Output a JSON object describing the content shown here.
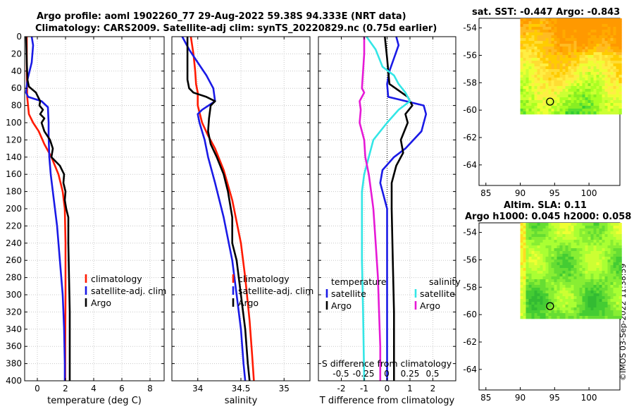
{
  "titles": {
    "line1": "Argo profile: aoml 1902260_77 29-Aug-2022 59.38S 94.333E (NRT data)",
    "line2": "Climatology: CARS2009. Satellite-adj clim: synTS_20220829.nc (0.75d earlier)",
    "sst": "sat. SST: -0.447 Argo: -0.843",
    "sla1": "Altim. SLA: 0.11",
    "sla2": "Argo h1000: 0.045 h2000: 0.058"
  },
  "stamp": "©IMOS 03-Sep-2022 11:38:59",
  "colors": {
    "climatology": "#ff1a00",
    "satellite": "#1a1ae6",
    "argo": "#000000",
    "salinity": "#33e6e6",
    "argo_sal": "#e619d6"
  },
  "chart_data": [
    {
      "id": "temperature",
      "type": "line",
      "xlabel": "temperature (deg C)",
      "xlim": [
        -0.9,
        9.0
      ],
      "ylim": [
        0,
        400
      ],
      "xticks": [
        0,
        2,
        4,
        6,
        8
      ],
      "xtick_labels": [
        "0",
        "2",
        "4",
        "6",
        "8"
      ],
      "yticks": [
        0,
        20,
        40,
        60,
        80,
        100,
        120,
        140,
        160,
        180,
        200,
        220,
        240,
        260,
        280,
        300,
        320,
        340,
        360,
        380,
        400
      ],
      "ytick_labels": [
        "0",
        "20",
        "40",
        "60",
        "80",
        "100",
        "120",
        "140",
        "160",
        "180",
        "200",
        "220",
        "240",
        "260",
        "280",
        "300",
        "320",
        "340",
        "360",
        "380",
        "400"
      ],
      "legend": [
        "climatology",
        "satellite-adj. clim",
        "Argo"
      ],
      "series": [
        {
          "name": "climatology",
          "color": "#ff1a00",
          "points": [
            [
              -0.75,
              0
            ],
            [
              -0.75,
              40
            ],
            [
              -0.72,
              70
            ],
            [
              -0.6,
              90
            ],
            [
              -0.3,
              100
            ],
            [
              0.1,
              110
            ],
            [
              0.5,
              125
            ],
            [
              1.0,
              140
            ],
            [
              1.5,
              160
            ],
            [
              1.8,
              180
            ],
            [
              1.95,
              200
            ],
            [
              2.0,
              240
            ],
            [
              2.0,
              300
            ],
            [
              1.98,
              360
            ],
            [
              1.98,
              400
            ]
          ]
        },
        {
          "name": "satellite-adj. clim",
          "color": "#1a1ae6",
          "points": [
            [
              -0.4,
              0
            ],
            [
              -0.3,
              10
            ],
            [
              -0.4,
              30
            ],
            [
              -0.7,
              50
            ],
            [
              -0.8,
              65
            ],
            [
              -0.65,
              70
            ],
            [
              0.3,
              75
            ],
            [
              0.75,
              82
            ],
            [
              0.8,
              100
            ],
            [
              0.8,
              115
            ],
            [
              0.85,
              140
            ],
            [
              0.95,
              160
            ],
            [
              1.1,
              180
            ],
            [
              1.4,
              220
            ],
            [
              1.6,
              260
            ],
            [
              1.8,
              300
            ],
            [
              1.9,
              340
            ],
            [
              1.95,
              380
            ],
            [
              1.95,
              400
            ]
          ]
        },
        {
          "name": "Argo",
          "color": "#000000",
          "points": [
            [
              -0.8,
              0
            ],
            [
              -0.75,
              30
            ],
            [
              -0.7,
              50
            ],
            [
              -0.6,
              58
            ],
            [
              -0.1,
              65
            ],
            [
              0.2,
              75
            ],
            [
              0.15,
              80
            ],
            [
              0.4,
              85
            ],
            [
              0.2,
              90
            ],
            [
              0.5,
              95
            ],
            [
              0.3,
              100
            ],
            [
              0.5,
              110
            ],
            [
              0.9,
              120
            ],
            [
              1.1,
              130
            ],
            [
              1.0,
              140
            ],
            [
              1.6,
              150
            ],
            [
              1.9,
              160
            ],
            [
              1.85,
              170
            ],
            [
              2.0,
              180
            ],
            [
              1.95,
              190
            ],
            [
              2.05,
              200
            ],
            [
              2.2,
              210
            ],
            [
              2.2,
              240
            ],
            [
              2.25,
              280
            ],
            [
              2.3,
              320
            ],
            [
              2.3,
              360
            ],
            [
              2.3,
              400
            ]
          ]
        }
      ]
    },
    {
      "id": "salinity",
      "type": "line",
      "xlabel": "salinity",
      "xlim": [
        33.7,
        35.3
      ],
      "ylim": [
        0,
        400
      ],
      "xticks": [
        34,
        34.5,
        35
      ],
      "xtick_labels": [
        "34",
        "34.5",
        "35"
      ],
      "legend": [
        "climatology",
        "satellite-adj. clim",
        "Argo"
      ],
      "series": [
        {
          "name": "climatology",
          "color": "#ff1a00",
          "points": [
            [
              33.92,
              0
            ],
            [
              33.95,
              20
            ],
            [
              33.97,
              40
            ],
            [
              33.98,
              55
            ],
            [
              34.0,
              65
            ],
            [
              34.0,
              80
            ],
            [
              34.05,
              100
            ],
            [
              34.12,
              115
            ],
            [
              34.2,
              130
            ],
            [
              34.3,
              155
            ],
            [
              34.4,
              190
            ],
            [
              34.5,
              240
            ],
            [
              34.55,
              280
            ],
            [
              34.6,
              330
            ],
            [
              34.63,
              370
            ],
            [
              34.65,
              400
            ]
          ]
        },
        {
          "name": "satellite-adj. clim",
          "color": "#1a1ae6",
          "points": [
            [
              33.82,
              0
            ],
            [
              33.9,
              15
            ],
            [
              34.0,
              30
            ],
            [
              34.1,
              45
            ],
            [
              34.18,
              60
            ],
            [
              34.2,
              75
            ],
            [
              34.05,
              85
            ],
            [
              34.0,
              90
            ],
            [
              34.02,
              100
            ],
            [
              34.08,
              120
            ],
            [
              34.12,
              140
            ],
            [
              34.2,
              170
            ],
            [
              34.3,
              210
            ],
            [
              34.4,
              260
            ],
            [
              34.45,
              300
            ],
            [
              34.5,
              340
            ],
            [
              34.53,
              380
            ],
            [
              34.55,
              400
            ]
          ]
        },
        {
          "name": "Argo",
          "color": "#000000",
          "points": [
            [
              33.88,
              0
            ],
            [
              33.88,
              50
            ],
            [
              33.9,
              60
            ],
            [
              33.95,
              65
            ],
            [
              34.1,
              70
            ],
            [
              34.2,
              75
            ],
            [
              34.15,
              80
            ],
            [
              34.13,
              95
            ],
            [
              34.12,
              110
            ],
            [
              34.15,
              125
            ],
            [
              34.22,
              140
            ],
            [
              34.3,
              160
            ],
            [
              34.35,
              180
            ],
            [
              34.4,
              210
            ],
            [
              34.4,
              240
            ],
            [
              34.45,
              260
            ],
            [
              34.5,
              300
            ],
            [
              34.55,
              340
            ],
            [
              34.58,
              380
            ],
            [
              34.6,
              400
            ]
          ]
        }
      ]
    },
    {
      "id": "difference",
      "type": "line",
      "xlabel": "T difference from climatology",
      "top_axis_title": "S difference from climatology",
      "xlim": [
        -3.0,
        3.0
      ],
      "ylim": [
        0,
        400
      ],
      "xticks": [
        -2,
        -1,
        0,
        1,
        2
      ],
      "xtick_labels": [
        "-2",
        "-1",
        "0",
        "1",
        "2"
      ],
      "top_ticks": [
        -0.5,
        -0.25,
        0,
        0.25,
        0.5
      ],
      "top_tick_labels": [
        "-0.5",
        "-0.25",
        "0",
        "0.25",
        "0.5"
      ],
      "legend_temperature": {
        "heading": "temperature",
        "items": [
          "satellite",
          "Argo"
        ]
      },
      "legend_salinity": {
        "heading": "salinity",
        "items": [
          "satellite",
          "Argo"
        ]
      },
      "series": [
        {
          "name": "temperature satellite",
          "color": "#1a1ae6",
          "points": [
            [
              0.4,
              0
            ],
            [
              0.5,
              10
            ],
            [
              0.3,
              25
            ],
            [
              0.1,
              40
            ],
            [
              0.0,
              55
            ],
            [
              0.05,
              70
            ],
            [
              1.6,
              80
            ],
            [
              1.7,
              90
            ],
            [
              1.5,
              110
            ],
            [
              0.8,
              130
            ],
            [
              0.3,
              140
            ],
            [
              -0.2,
              155
            ],
            [
              -0.3,
              170
            ],
            [
              0.0,
              200
            ],
            [
              0.0,
              260
            ],
            [
              0.0,
              400
            ]
          ]
        },
        {
          "name": "temperature Argo",
          "color": "#000000",
          "points": [
            [
              -0.1,
              0
            ],
            [
              0.0,
              25
            ],
            [
              0.1,
              55
            ],
            [
              0.9,
              70
            ],
            [
              1.1,
              80
            ],
            [
              0.8,
              90
            ],
            [
              0.9,
              100
            ],
            [
              0.6,
              120
            ],
            [
              0.7,
              135
            ],
            [
              0.4,
              150
            ],
            [
              0.2,
              170
            ],
            [
              0.2,
              200
            ],
            [
              0.25,
              260
            ],
            [
              0.3,
              320
            ],
            [
              0.3,
              400
            ]
          ]
        },
        {
          "name": "salinity satellite",
          "color": "#33e6e6",
          "points": [
            [
              -0.9,
              0
            ],
            [
              -0.5,
              15
            ],
            [
              -0.2,
              35
            ],
            [
              0.3,
              45
            ],
            [
              0.5,
              55
            ],
            [
              0.8,
              65
            ],
            [
              1.0,
              75
            ],
            [
              0.5,
              85
            ],
            [
              0.0,
              100
            ],
            [
              -0.6,
              120
            ],
            [
              -0.8,
              140
            ],
            [
              -1.0,
              160
            ],
            [
              -1.1,
              180
            ],
            [
              -1.1,
              260
            ],
            [
              -1.05,
              320
            ],
            [
              -1.0,
              400
            ]
          ]
        },
        {
          "name": "salinity Argo",
          "color": "#e619d6",
          "points": [
            [
              -1.0,
              0
            ],
            [
              -1.0,
              20
            ],
            [
              -1.05,
              40
            ],
            [
              -1.1,
              60
            ],
            [
              -1.0,
              65
            ],
            [
              -1.2,
              75
            ],
            [
              -1.15,
              85
            ],
            [
              -1.2,
              100
            ],
            [
              -1.0,
              120
            ],
            [
              -0.95,
              140
            ],
            [
              -0.8,
              160
            ],
            [
              -0.7,
              180
            ],
            [
              -0.6,
              200
            ],
            [
              -0.5,
              240
            ],
            [
              -0.4,
              280
            ],
            [
              -0.35,
              320
            ],
            [
              -0.3,
              360
            ],
            [
              -0.3,
              400
            ]
          ]
        }
      ]
    },
    {
      "id": "sst-map",
      "type": "heatmap",
      "xlim": [
        84,
        104.5
      ],
      "ylim": [
        -65.5,
        -53.3
      ],
      "xticks": [
        85,
        90,
        95,
        100
      ],
      "xtick_labels": [
        "85",
        "90",
        "95",
        "100"
      ],
      "yticks": [
        -54,
        -56,
        -58,
        -60,
        -62,
        -64
      ],
      "ytick_labels": [
        "-54",
        "-56",
        "-58",
        "-60",
        "-62",
        "-64"
      ],
      "data_extent_lon": [
        90,
        104.5
      ],
      "data_extent_lat": [
        -60.1,
        -53.3
      ],
      "profile_location": [
        94.333,
        -59.38
      ],
      "palette": "sst"
    },
    {
      "id": "sla-map",
      "type": "heatmap",
      "xlim": [
        84,
        104.5
      ],
      "ylim": [
        -65.5,
        -53.3
      ],
      "xticks": [
        85,
        90,
        95,
        100
      ],
      "xtick_labels": [
        "85",
        "90",
        "95",
        "100"
      ],
      "yticks": [
        -54,
        -56,
        -58,
        -60,
        -62,
        -64
      ],
      "ytick_labels": [
        "-54",
        "-56",
        "-58",
        "-60",
        "-62",
        "-64"
      ],
      "data_extent_lon": [
        90,
        104.5
      ],
      "data_extent_lat": [
        -60.1,
        -53.3
      ],
      "profile_location": [
        94.333,
        -59.38
      ],
      "palette": "sla"
    }
  ]
}
